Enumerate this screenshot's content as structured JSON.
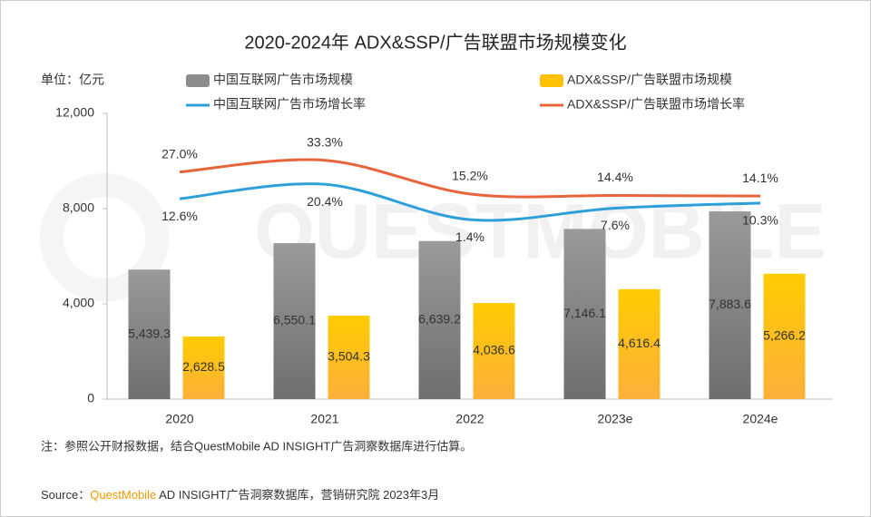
{
  "chart_data": {
    "type": "bar_line",
    "title": "2020-2024年 ADX&SSP/广告联盟市场规模变化",
    "unit_label": "单位：亿元",
    "watermark": "QUESTMOBILE",
    "categories": [
      "2020",
      "2021",
      "2022",
      "2023e",
      "2024e"
    ],
    "ylim": [
      0,
      12000
    ],
    "yticks": [
      0,
      {
        "value": 4000,
        "label": "4,000"
      },
      {
        "value": 8000,
        "label": "8,000"
      },
      {
        "value": 12000,
        "label": "12,000"
      }
    ],
    "y2lim": [
      -95,
      58.5
    ],
    "series": [
      {
        "name": "中国互联网广告市场规模",
        "type": "bar",
        "color": "#8c8c8c",
        "values": [
          5439.3,
          6550.1,
          6639.2,
          7146.1,
          7883.6
        ],
        "value_labels": [
          "5,439.3",
          "6,550.1",
          "6,639.2",
          "7,146.1",
          "7,883.6"
        ]
      },
      {
        "name": "ADX&SSP/广告联盟市场规模",
        "type": "bar",
        "color": "#ffc000",
        "values": [
          2628.5,
          3504.3,
          4036.6,
          4616.4,
          5266.2
        ],
        "value_labels": [
          "2,628.5",
          "3,504.3",
          "4,036.6",
          "4,616.4",
          "5,266.2"
        ]
      },
      {
        "name": "中国互联网广告市场增长率",
        "type": "line",
        "axis": "y2",
        "color": "#2e9fd8",
        "values": [
          12.6,
          20.4,
          1.4,
          7.6,
          10.3
        ],
        "value_labels": [
          "12.6%",
          "20.4%",
          "1.4%",
          "7.6%",
          "10.3%"
        ]
      },
      {
        "name": "ADX&SSP/广告联盟市场增长率",
        "type": "line",
        "axis": "y2",
        "color": "#e8643c",
        "values": [
          27.0,
          33.3,
          15.2,
          14.4,
          14.1
        ],
        "value_labels": [
          "27.0%",
          "33.3%",
          "15.2%",
          "14.4%",
          "14.1%"
        ]
      }
    ],
    "note": "注：参照公开财报数据，结合QuestMobile AD INSIGHT广告洞察数据库进行估算。",
    "source_prefix": "Source：",
    "source_brand": "QuestMobile",
    "source_text": " AD INSIGHT广告洞察数据库，营销研究院 2023年3月"
  }
}
